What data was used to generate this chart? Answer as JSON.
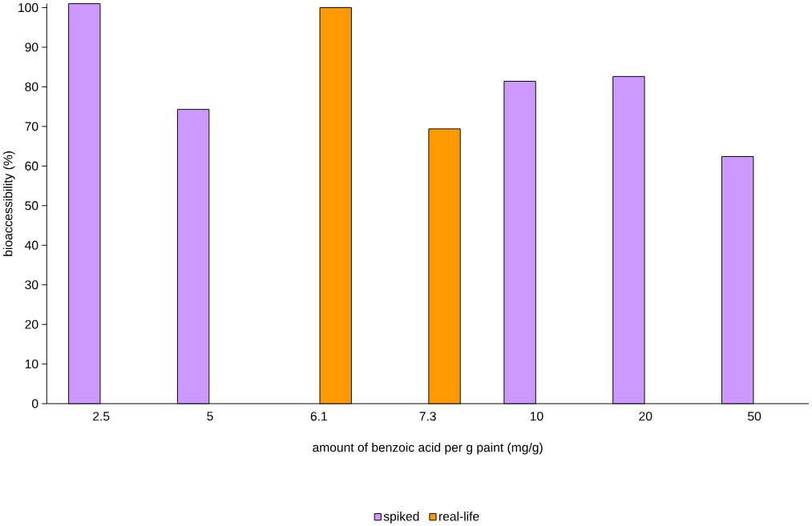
{
  "chart_data": {
    "type": "bar",
    "xlabel": "amount of benzoic acid per g paint (mg/g)",
    "ylabel": "bioaccessibility (%)",
    "categories": [
      "2.5",
      "5",
      "6.1",
      "7.3",
      "10",
      "20",
      "50"
    ],
    "series": [
      {
        "name": "spiked",
        "color": "#cc99ff",
        "values": [
          101,
          74.3,
          null,
          null,
          81.4,
          82.6,
          62.4
        ]
      },
      {
        "name": "real-life",
        "color": "#ff9900",
        "values": [
          null,
          null,
          100,
          69.4,
          null,
          null,
          null
        ]
      }
    ],
    "ylim": [
      0,
      101
    ],
    "yticks": [
      0,
      10,
      20,
      30,
      40,
      50,
      60,
      70,
      80,
      90,
      100
    ],
    "grid": false,
    "legend": "bottom"
  }
}
